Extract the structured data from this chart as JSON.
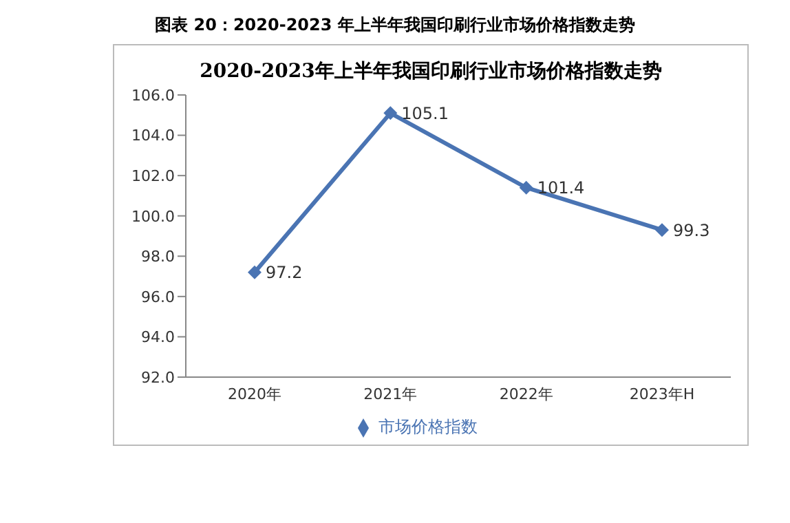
{
  "chart_data": {
    "type": "line",
    "title": "图表 20：2020-2023 年上半年我国印刷行业市场价格指数走势",
    "subtitle": "2020-2023年上半年我国印刷行业市场价格指数走势",
    "categories": [
      "2020年",
      "2021年",
      "2022年",
      "2023年H"
    ],
    "series": [
      {
        "name": "市场价格指数",
        "color": "#4a74b3",
        "values": [
          97.2,
          105.1,
          101.4,
          99.3
        ]
      }
    ],
    "ylim": [
      92,
      106
    ],
    "yticks": [
      {
        "value": 92,
        "label": "92.0"
      },
      {
        "value": 94,
        "label": "94.0"
      },
      {
        "value": 96,
        "label": "96.0"
      },
      {
        "value": 98,
        "label": "98.0"
      },
      {
        "value": 100,
        "label": "100.0"
      },
      {
        "value": 102,
        "label": "102.0"
      },
      {
        "value": 104,
        "label": "104.0"
      },
      {
        "value": 106,
        "label": "106.0"
      }
    ],
    "grid": false,
    "legend": "bottom",
    "marker": "diamond",
    "line_style": "solid",
    "data_labels": true
  }
}
